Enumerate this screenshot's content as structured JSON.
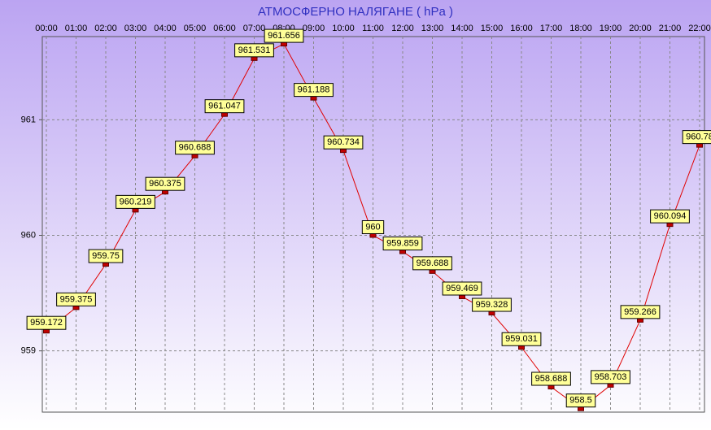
{
  "chart_data": {
    "type": "line",
    "title": "АТМОСФЕРНО НАЛЯГАНЕ  ( hPa )",
    "categories": [
      "00:00",
      "01:00",
      "02:00",
      "03:00",
      "04:00",
      "05:00",
      "06:00",
      "07:00",
      "08:00",
      "09:00",
      "10:00",
      "11:00",
      "12:00",
      "13:00",
      "14:00",
      "15:00",
      "16:00",
      "17:00",
      "18:00",
      "19:00",
      "20:00",
      "21:00",
      "22:00"
    ],
    "series": [
      {
        "name": "АТМОСФЕРНО НАЛЯГАНЕ",
        "color": "#e00000",
        "values": [
          959.172,
          959.375,
          959.75,
          960.219,
          960.375,
          960.688,
          961.047,
          961.531,
          961.656,
          961.188,
          960.734,
          960,
          959.859,
          959.688,
          959.469,
          959.328,
          959.031,
          958.688,
          958.5,
          958.703,
          959.266,
          960.094,
          960.78
        ]
      }
    ],
    "ylim": [
      958.47,
      961.72
    ],
    "yticks": [
      959,
      960,
      961
    ],
    "grid": true
  }
}
